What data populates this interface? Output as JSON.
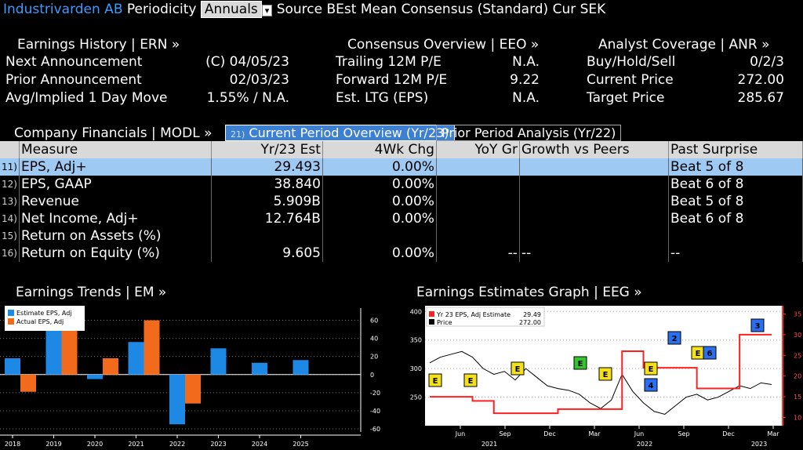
{
  "header": {
    "company": "Industrivarden AB",
    "periodicity_label": "Periodicity",
    "periodicity_value": "Annuals",
    "source_text": "Source BEst Mean Consensus (Standard) Cur SEK"
  },
  "earnings_history": {
    "title": "Earnings History | ERN »",
    "rows": [
      {
        "label": "Next Announcement",
        "value": "(C)  04/05/23"
      },
      {
        "label": "Prior Announcement",
        "value": "02/03/23"
      },
      {
        "label": "Avg/Implied 1 Day Move",
        "value": "1.55% / N.A."
      }
    ]
  },
  "consensus": {
    "title": "Consensus Overview | EEO »",
    "rows": [
      {
        "label": "Trailing 12M P/E",
        "value": "N.A."
      },
      {
        "label": "Forward 12M P/E",
        "value": "9.22"
      },
      {
        "label": "Est. LTG (EPS)",
        "value": "N.A."
      }
    ]
  },
  "analyst": {
    "title": "Analyst Coverage | ANR »",
    "rows": [
      {
        "label": "Buy/Hold/Sell",
        "value": "0/2/3"
      },
      {
        "label": "Current Price",
        "value": "272.00"
      },
      {
        "label": "Target Price",
        "value": "285.67"
      }
    ]
  },
  "financials": {
    "title": "Company Financials | MODL »",
    "tab_current": "Current Period Overview (Yr/23)",
    "tab_current_num": "21)",
    "tab_prior": "Prior Period Analysis (Yr/22)",
    "columns": [
      "Measure",
      "Yr/23 Est",
      "4Wk Chg",
      "YoY Gr",
      "Growth vs Peers",
      "Past Surprise"
    ],
    "rows": [
      {
        "n": "11)",
        "measure": "EPS, Adj+",
        "est": "29.493",
        "chg": "0.00%",
        "yoy": "",
        "peers": "",
        "surprise": "Beat 5 of 8"
      },
      {
        "n": "12)",
        "measure": "EPS, GAAP",
        "est": "38.840",
        "chg": "0.00%",
        "yoy": "",
        "peers": "",
        "surprise": "Beat 6 of 8"
      },
      {
        "n": "13)",
        "measure": "Revenue",
        "est": "5.909B",
        "chg": "0.00%",
        "yoy": "",
        "peers": "",
        "surprise": "Beat 5 of 8"
      },
      {
        "n": "14)",
        "measure": "Net Income, Adj+",
        "est": "12.764B",
        "chg": "0.00%",
        "yoy": "",
        "peers": "",
        "surprise": "Beat 6 of 8"
      },
      {
        "n": "15)",
        "measure": "Return on Assets (%)",
        "est": "",
        "chg": "",
        "yoy": "",
        "peers": "",
        "surprise": ""
      },
      {
        "n": "16)",
        "measure": "Return on Equity (%)",
        "est": "9.605",
        "chg": "0.00%",
        "yoy": "--",
        "peers": "--",
        "surprise": "--"
      }
    ]
  },
  "trends_title": "Earnings Trends | EM »",
  "graph_title": "Earnings Estimates Graph | EEG »",
  "chart_data": [
    {
      "type": "bar",
      "categories": [
        "2018",
        "2019",
        "2020",
        "2021",
        "2022",
        "2023",
        "2024",
        "2025"
      ],
      "series": [
        {
          "name": "Estimate EPS, Adj",
          "color": "#1e88e5",
          "values": [
            18,
            65,
            -5,
            36,
            -55,
            29,
            13,
            16
          ]
        },
        {
          "name": "Actual EPS, Adj",
          "color": "#f26b1d",
          "values": [
            -19,
            68,
            18,
            60,
            -32,
            null,
            null,
            null
          ]
        }
      ],
      "ylim": [
        -60,
        70
      ],
      "yticks": [
        -60,
        -40,
        -20,
        0,
        20,
        40,
        60
      ]
    },
    {
      "type": "line",
      "x_ticks": [
        "Jun",
        "Sep",
        "Dec",
        "Mar",
        "Jun",
        "Sep",
        "Dec",
        "Mar"
      ],
      "year_labels": [
        "2021",
        "2022",
        "2023"
      ],
      "series": [
        {
          "name": "Yr 23 EPS, Adj Estimate",
          "legend_value": "29.49",
          "color": "#ff2020",
          "values": [
            15,
            15,
            15,
            15,
            14,
            14,
            11,
            11,
            11,
            11,
            11,
            11,
            12,
            12,
            12,
            12,
            12,
            12,
            26,
            26,
            22,
            22,
            22,
            22,
            22,
            17,
            17,
            17,
            17,
            30,
            30,
            30,
            30
          ]
        },
        {
          "name": "Price",
          "legend_value": "272.00",
          "color": "#000000",
          "values": [
            310,
            320,
            325,
            330,
            320,
            300,
            290,
            295,
            280,
            300,
            285,
            270,
            265,
            262,
            255,
            240,
            230,
            245,
            290,
            260,
            240,
            225,
            220,
            235,
            250,
            255,
            245,
            250,
            260,
            270,
            265,
            275,
            272
          ]
        }
      ],
      "y_left": [
        250,
        300,
        350,
        400
      ],
      "y_right": [
        10,
        15,
        20,
        25,
        30,
        35
      ],
      "left_ylim": [
        200,
        410
      ],
      "right_ylim": [
        8,
        37
      ],
      "markers": [
        {
          "label": "E",
          "color": "#f5e11a"
        },
        {
          "label": "E",
          "color": "#f5e11a"
        },
        {
          "label": "E",
          "color": "#f5e11a"
        },
        {
          "label": "E",
          "color": "#34c42d"
        },
        {
          "label": "E",
          "color": "#f5e11a"
        },
        {
          "label": "E",
          "color": "#f5e11a"
        },
        {
          "label": "4",
          "color": "#2a6ff0"
        },
        {
          "label": "2",
          "color": "#2a6ff0"
        },
        {
          "label": "E",
          "color": "#f5e11a"
        },
        {
          "label": "6",
          "color": "#2a6ff0"
        },
        {
          "label": "3",
          "color": "#2a6ff0"
        }
      ]
    }
  ]
}
